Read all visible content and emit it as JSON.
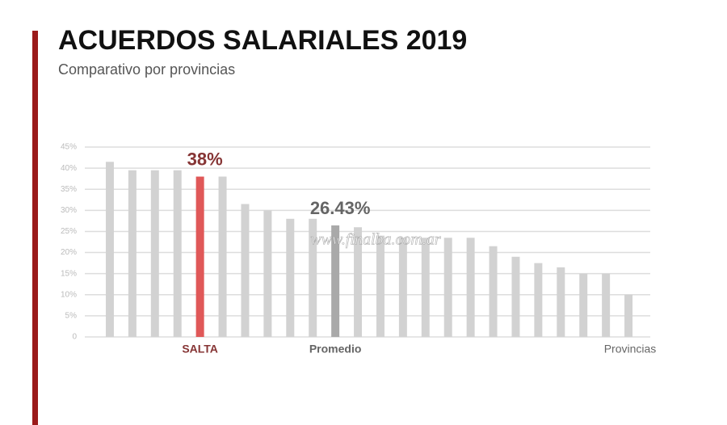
{
  "chart_data": {
    "type": "bar",
    "title": "ACUERDOS SALARIALES 2019",
    "subtitle": "Comparativo por provincias",
    "x_label": "Provincias",
    "watermark": "www.finalba.com.ar",
    "categories": [
      null,
      null,
      null,
      null,
      "SALTA",
      null,
      null,
      null,
      null,
      null,
      "Promedio",
      null,
      null,
      null,
      null,
      null,
      null,
      null,
      null,
      null,
      null,
      null,
      null,
      null
    ],
    "values": [
      41.5,
      39.5,
      39.5,
      39.5,
      38,
      38,
      31.5,
      30,
      28,
      28,
      26.43,
      26,
      24,
      23.5,
      23.5,
      23.5,
      23.5,
      21.5,
      19,
      17.5,
      16.5,
      15,
      15,
      10
    ],
    "value_labels": [
      null,
      null,
      null,
      null,
      "38%",
      null,
      null,
      null,
      null,
      null,
      "26.43%",
      null,
      null,
      null,
      null,
      null,
      null,
      null,
      null,
      null,
      null,
      null,
      null,
      null
    ],
    "colors": [
      "#d2d2d2",
      "#d2d2d2",
      "#d2d2d2",
      "#d2d2d2",
      "#e05858",
      "#d2d2d2",
      "#d2d2d2",
      "#d2d2d2",
      "#d2d2d2",
      "#d2d2d2",
      "#a9a9a9",
      "#d2d2d2",
      "#d2d2d2",
      "#d2d2d2",
      "#d2d2d2",
      "#d2d2d2",
      "#d2d2d2",
      "#d2d2d2",
      "#d2d2d2",
      "#d2d2d2",
      "#d2d2d2",
      "#d2d2d2",
      "#d2d2d2",
      "#d2d2d2"
    ],
    "ylim": [
      0,
      45
    ],
    "yticks": [
      0,
      {
        "value": 5,
        "label": "5%"
      },
      {
        "value": 10,
        "label": "10%"
      },
      {
        "value": 15,
        "label": "15%"
      },
      {
        "value": 20,
        "label": "20%"
      },
      {
        "value": 25,
        "label": "25%"
      },
      {
        "value": 30,
        "label": "30%"
      },
      {
        "value": 35,
        "label": "35%"
      },
      {
        "value": 40,
        "label": "40%"
      },
      {
        "value": 45,
        "label": "45%"
      }
    ],
    "grid": true
  }
}
